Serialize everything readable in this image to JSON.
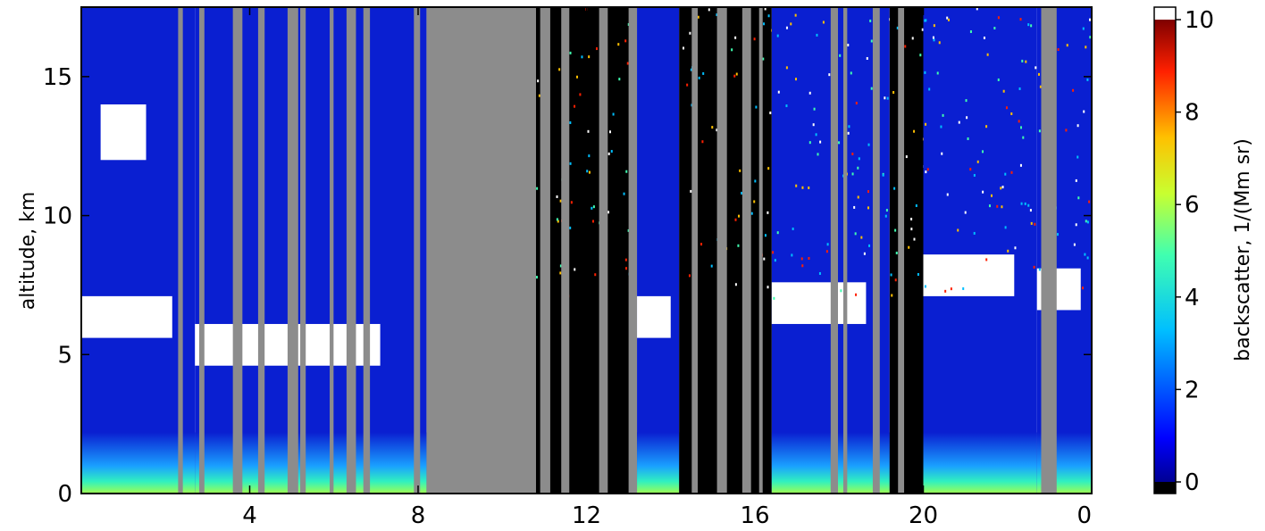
{
  "chart_data": {
    "type": "heatmap",
    "title": "",
    "xlabel": "",
    "ylabel": "altitude, km",
    "x_tick_labels": [
      "4",
      "8",
      "12",
      "16",
      "20",
      "0"
    ],
    "x_ticks_hours": [
      4,
      8,
      12,
      16,
      20,
      24
    ],
    "xlim": [
      0,
      24
    ],
    "y_tick_labels": [
      "0",
      "5",
      "10",
      "15"
    ],
    "y_ticks": [
      0,
      5,
      10,
      15
    ],
    "ylim": [
      0,
      17.5
    ],
    "colorbar": {
      "label": "backscatter, 1/(Mm sr)",
      "tick_labels": [
        "0",
        "2",
        "4",
        "6",
        "8",
        "10"
      ],
      "ticks": [
        0,
        2,
        4,
        6,
        8,
        10
      ],
      "range": [
        0,
        10
      ],
      "over_color": "#ffffff",
      "colormap": "jet"
    },
    "colors": {
      "no_data_gray": "#8c8c8c",
      "clear_sky_black": "#000000",
      "aerosol_blue": "#0a1fd1",
      "saturated_white": "#ffffff"
    },
    "segments_hours": [
      {
        "start": 0.0,
        "end": 2.7,
        "top_cloud_km": 14.0,
        "low_cloud_km": 6.5,
        "regime": "blue"
      },
      {
        "start": 2.7,
        "end": 8.2,
        "top_cloud_km": 0,
        "low_cloud_km": 5.5,
        "regime": "blue"
      },
      {
        "start": 8.2,
        "end": 10.8,
        "top_cloud_km": 0,
        "low_cloud_km": 0,
        "regime": "gray"
      },
      {
        "start": 10.8,
        "end": 13.2,
        "top_cloud_km": 0,
        "low_cloud_km": 0,
        "regime": "black"
      },
      {
        "start": 13.2,
        "end": 14.2,
        "top_cloud_km": 0,
        "low_cloud_km": 6.5,
        "regime": "blue"
      },
      {
        "start": 14.2,
        "end": 16.4,
        "top_cloud_km": 0,
        "low_cloud_km": 0,
        "regime": "black"
      },
      {
        "start": 16.4,
        "end": 19.2,
        "top_cloud_km": 0,
        "low_cloud_km": 7.0,
        "regime": "blue"
      },
      {
        "start": 19.2,
        "end": 20.0,
        "top_cloud_km": 0,
        "low_cloud_km": 0,
        "regime": "black"
      },
      {
        "start": 20.0,
        "end": 22.7,
        "top_cloud_km": 0,
        "low_cloud_km": 8.0,
        "regime": "blue"
      },
      {
        "start": 22.7,
        "end": 24.0,
        "top_cloud_km": 0,
        "low_cloud_km": 7.5,
        "regime": "blue"
      }
    ]
  }
}
